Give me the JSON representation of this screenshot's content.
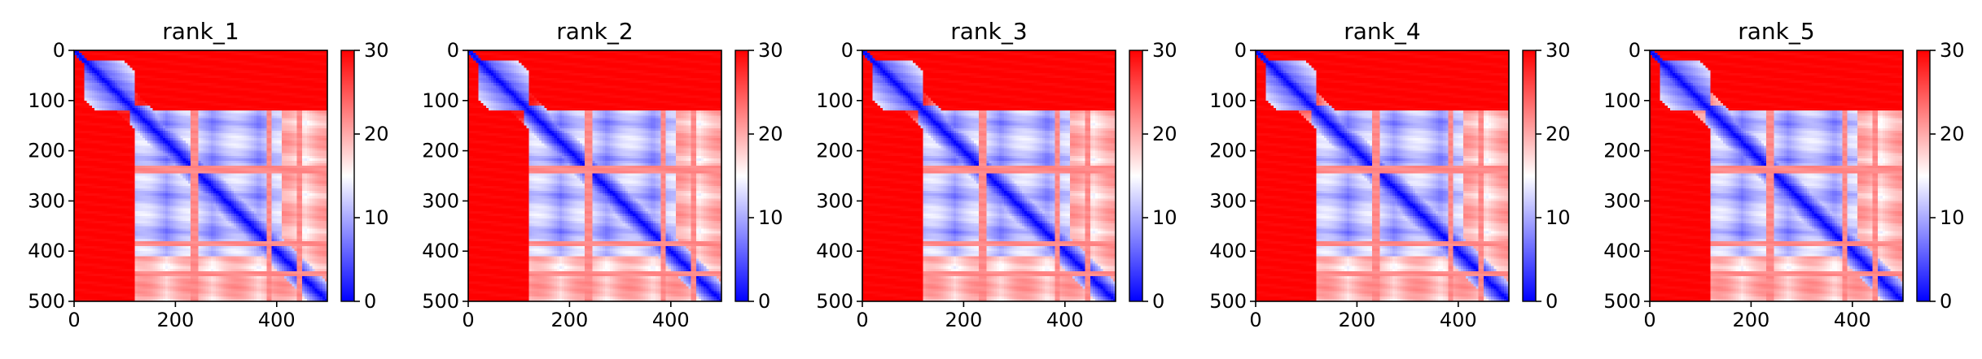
{
  "chart_data": [
    {
      "type": "heatmap",
      "title": "rank_1",
      "xlabel": "",
      "ylabel": "",
      "xlim": [
        0,
        500
      ],
      "ylim": [
        500,
        0
      ],
      "xticks": [
        0,
        200,
        400
      ],
      "yticks": [
        0,
        100,
        200,
        300,
        400,
        500
      ],
      "colorbar": {
        "range": [
          0,
          30
        ],
        "ticks": [
          0,
          10,
          20,
          30
        ],
        "colormap": "bwr"
      },
      "grid": false
    },
    {
      "type": "heatmap",
      "title": "rank_2",
      "xlabel": "",
      "ylabel": "",
      "xlim": [
        0,
        500
      ],
      "ylim": [
        500,
        0
      ],
      "xticks": [
        0,
        200,
        400
      ],
      "yticks": [
        0,
        100,
        200,
        300,
        400,
        500
      ],
      "colorbar": {
        "range": [
          0,
          30
        ],
        "ticks": [
          0,
          10,
          20,
          30
        ],
        "colormap": "bwr"
      },
      "grid": false
    },
    {
      "type": "heatmap",
      "title": "rank_3",
      "xlabel": "",
      "ylabel": "",
      "xlim": [
        0,
        500
      ],
      "ylim": [
        500,
        0
      ],
      "xticks": [
        0,
        200,
        400
      ],
      "yticks": [
        0,
        100,
        200,
        300,
        400,
        500
      ],
      "colorbar": {
        "range": [
          0,
          30
        ],
        "ticks": [
          0,
          10,
          20,
          30
        ],
        "colormap": "bwr"
      },
      "grid": false
    },
    {
      "type": "heatmap",
      "title": "rank_4",
      "xlabel": "",
      "ylabel": "",
      "xlim": [
        0,
        500
      ],
      "ylim": [
        500,
        0
      ],
      "xticks": [
        0,
        200,
        400
      ],
      "yticks": [
        0,
        100,
        200,
        300,
        400,
        500
      ],
      "colorbar": {
        "range": [
          0,
          30
        ],
        "ticks": [
          0,
          10,
          20,
          30
        ],
        "colormap": "bwr"
      },
      "grid": false
    },
    {
      "type": "heatmap",
      "title": "rank_5",
      "xlabel": "",
      "ylabel": "",
      "xlim": [
        0,
        500
      ],
      "ylim": [
        500,
        0
      ],
      "xticks": [
        0,
        200,
        400
      ],
      "yticks": [
        0,
        100,
        200,
        300,
        400,
        500
      ],
      "colorbar": {
        "range": [
          0,
          30
        ],
        "ticks": [
          0,
          10,
          20,
          30
        ],
        "colormap": "bwr"
      },
      "grid": false
    }
  ],
  "colors": {
    "low": "#0000ff",
    "mid": "#ffffff",
    "high": "#ff0000"
  }
}
